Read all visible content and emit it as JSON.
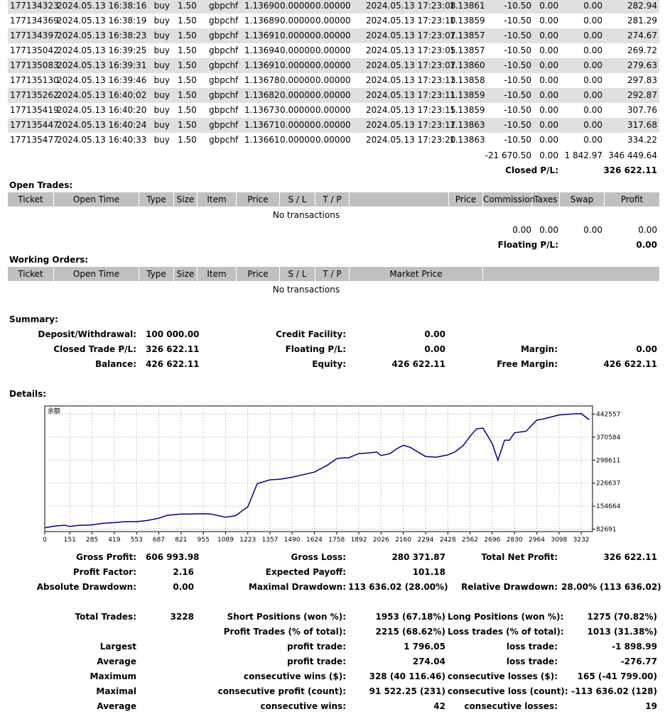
{
  "closed_rows": [
    {
      "ticket": "177134323",
      "open_time": "2024.05.13 16:38:16",
      "type": "buy",
      "size": "1.50",
      "item": "gbpchf",
      "price": "1.13690",
      "sl": "0.00000",
      "tp": "0.00000",
      "close_time": "2024.05.13 17:23:08",
      "close_price": "1.13861",
      "commission": "-10.50",
      "taxes": "0.00",
      "swap": "0.00",
      "profit": "282.94"
    },
    {
      "ticket": "177134369",
      "open_time": "2024.05.13 16:38:19",
      "type": "buy",
      "size": "1.50",
      "item": "gbpchf",
      "price": "1.13689",
      "sl": "0.00000",
      "tp": "0.00000",
      "close_time": "2024.05.13 17:23:10",
      "close_price": "1.13859",
      "commission": "-10.50",
      "taxes": "0.00",
      "swap": "0.00",
      "profit": "281.29"
    },
    {
      "ticket": "177134397",
      "open_time": "2024.05.13 16:38:23",
      "type": "buy",
      "size": "1.50",
      "item": "gbpchf",
      "price": "1.13691",
      "sl": "0.00000",
      "tp": "0.00000",
      "close_time": "2024.05.13 17:23:07",
      "close_price": "1.13857",
      "commission": "-10.50",
      "taxes": "0.00",
      "swap": "0.00",
      "profit": "274.67"
    },
    {
      "ticket": "177135042",
      "open_time": "2024.05.13 16:39:25",
      "type": "buy",
      "size": "1.50",
      "item": "gbpchf",
      "price": "1.13694",
      "sl": "0.00000",
      "tp": "0.00000",
      "close_time": "2024.05.13 17:23:05",
      "close_price": "1.13857",
      "commission": "-10.50",
      "taxes": "0.00",
      "swap": "0.00",
      "profit": "269.72"
    },
    {
      "ticket": "177135083",
      "open_time": "2024.05.13 16:39:31",
      "type": "buy",
      "size": "1.50",
      "item": "gbpchf",
      "price": "1.13691",
      "sl": "0.00000",
      "tp": "0.00000",
      "close_time": "2024.05.13 17:23:07",
      "close_price": "1.13860",
      "commission": "-10.50",
      "taxes": "0.00",
      "swap": "0.00",
      "profit": "279.63"
    },
    {
      "ticket": "177135130",
      "open_time": "2024.05.13 16:39:46",
      "type": "buy",
      "size": "1.50",
      "item": "gbpchf",
      "price": "1.13678",
      "sl": "0.00000",
      "tp": "0.00000",
      "close_time": "2024.05.13 17:23:13",
      "close_price": "1.13858",
      "commission": "-10.50",
      "taxes": "0.00",
      "swap": "0.00",
      "profit": "297.83"
    },
    {
      "ticket": "177135262",
      "open_time": "2024.05.13 16:40:02",
      "type": "buy",
      "size": "1.50",
      "item": "gbpchf",
      "price": "1.13682",
      "sl": "0.00000",
      "tp": "0.00000",
      "close_time": "2024.05.13 17:23:11",
      "close_price": "1.13859",
      "commission": "-10.50",
      "taxes": "0.00",
      "swap": "0.00",
      "profit": "292.87"
    },
    {
      "ticket": "177135419",
      "open_time": "2024.05.13 16:40:20",
      "type": "buy",
      "size": "1.50",
      "item": "gbpchf",
      "price": "1.13673",
      "sl": "0.00000",
      "tp": "0.00000",
      "close_time": "2024.05.13 17:23:15",
      "close_price": "1.13859",
      "commission": "-10.50",
      "taxes": "0.00",
      "swap": "0.00",
      "profit": "307.76"
    },
    {
      "ticket": "177135447",
      "open_time": "2024.05.13 16:40:24",
      "type": "buy",
      "size": "1.50",
      "item": "gbpchf",
      "price": "1.13671",
      "sl": "0.00000",
      "tp": "0.00000",
      "close_time": "2024.05.13 17:23:17",
      "close_price": "1.13863",
      "commission": "-10.50",
      "taxes": "0.00",
      "swap": "0.00",
      "profit": "317.68"
    },
    {
      "ticket": "177135477",
      "open_time": "2024.05.13 16:40:33",
      "type": "buy",
      "size": "1.50",
      "item": "gbpchf",
      "price": "1.13661",
      "sl": "0.00000",
      "tp": "0.00000",
      "close_time": "2024.05.13 17:23:20",
      "close_price": "1.13863",
      "commission": "-10.50",
      "taxes": "0.00",
      "swap": "0.00",
      "profit": "334.22"
    }
  ],
  "closed_totals": {
    "commission": "-21 670.50",
    "taxes": "0.00",
    "swap": "1 842.97",
    "profit": "346 449.64"
  },
  "closed_pl": {
    "label": "Closed P/L:",
    "value": "326 622.11"
  },
  "open_trades": {
    "title": "Open Trades:",
    "headers": [
      "Ticket",
      "Open Time",
      "Type",
      "Size",
      "Item",
      "Price",
      "S / L",
      "T / P",
      "",
      "Price",
      "Commission",
      "Taxes",
      "Swap",
      "Profit"
    ],
    "empty": "No transactions",
    "totals": {
      "commission": "0.00",
      "taxes": "0.00",
      "swap": "0.00",
      "profit": "0.00"
    },
    "floating_label": "Floating P/L:",
    "floating_value": "0.00"
  },
  "working_orders": {
    "title": "Working Orders:",
    "headers": [
      "Ticket",
      "Open Time",
      "Type",
      "Size",
      "Item",
      "Price",
      "S / L",
      "T / P",
      "Market Price",
      ""
    ],
    "empty": "No transactions"
  },
  "summary": {
    "title": "Summary:",
    "deposit_label": "Deposit/Withdrawal:",
    "deposit": "100 000.00",
    "credit_label": "Credit Facility:",
    "credit": "0.00",
    "closed_label": "Closed Trade P/L:",
    "closed": "326 622.11",
    "floating_label": "Floating P/L:",
    "floating": "0.00",
    "margin_label": "Margin:",
    "margin": "0.00",
    "balance_label": "Balance:",
    "balance": "426 622.11",
    "equity_label": "Equity:",
    "equity": "426 622.11",
    "free_margin_label": "Free Margin:",
    "free_margin": "426 622.11"
  },
  "details": {
    "title": "Details:"
  },
  "chart_data": {
    "type": "line",
    "title": "余额",
    "xticks": [
      0,
      151,
      285,
      419,
      553,
      687,
      821,
      955,
      1089,
      1223,
      1357,
      1490,
      1624,
      1758,
      1892,
      2026,
      2160,
      2294,
      2428,
      2562,
      2696,
      2830,
      2964,
      3098,
      3232
    ],
    "yticks": [
      82691,
      154664,
      226637,
      298611,
      370584,
      442557
    ],
    "xlim": [
      0,
      3300
    ],
    "ylim": [
      75000,
      468000
    ],
    "series": [
      {
        "color": "#000080",
        "x": [
          0,
          60,
          120,
          151,
          200,
          285,
          350,
          419,
          480,
          553,
          620,
          687,
          740,
          821,
          880,
          955,
          1000,
          1089,
          1150,
          1190,
          1223,
          1280,
          1357,
          1420,
          1490,
          1540,
          1624,
          1700,
          1758,
          1800,
          1830,
          1892,
          1950,
          2000,
          2026,
          2080,
          2120,
          2160,
          2200,
          2294,
          2360,
          2428,
          2470,
          2520,
          2562,
          2600,
          2640,
          2696,
          2730,
          2770,
          2800,
          2830,
          2900,
          2964,
          3000,
          3098,
          3150,
          3180,
          3232,
          3280
        ],
        "y": [
          87000,
          92000,
          95000,
          91000,
          94000,
          96000,
          101000,
          103000,
          106000,
          106000,
          110000,
          117000,
          126000,
          130000,
          130000,
          131000,
          130000,
          120000,
          125000,
          140000,
          152000,
          225000,
          237000,
          239000,
          245000,
          251000,
          261000,
          282000,
          303000,
          306000,
          306000,
          319000,
          321000,
          324000,
          313000,
          319000,
          334000,
          345000,
          339000,
          310000,
          308000,
          315000,
          324000,
          344000,
          373000,
          396000,
          399000,
          350000,
          298000,
          361000,
          361000,
          384000,
          389000,
          424000,
          427000,
          440000,
          442000,
          443000,
          444000,
          425000
        ]
      }
    ]
  },
  "stats": {
    "gross_profit_label": "Gross Profit:",
    "gross_profit": "606 993.98",
    "gross_loss_label": "Gross Loss:",
    "gross_loss": "280 371.87",
    "total_net_profit_label": "Total Net Profit:",
    "total_net_profit": "326 622.11",
    "profit_factor_label": "Profit Factor:",
    "profit_factor": "2.16",
    "expected_payoff_label": "Expected Payoff:",
    "expected_payoff": "101.18",
    "absolute_drawdown_label": "Absolute Drawdown:",
    "absolute_drawdown": "0.00",
    "maximal_drawdown_label": "Maximal Drawdown:",
    "maximal_drawdown": "113 636.02 (28.00%)",
    "relative_drawdown_label": "Relative Drawdown:",
    "relative_drawdown": "28.00% (113 636.02)",
    "total_trades_label": "Total Trades:",
    "total_trades": "3228",
    "short_label": "Short Positions (won %):",
    "short": "1953 (67.18%)",
    "long_label": "Long Positions (won %):",
    "long": "1275 (70.82%)",
    "profit_trades_label": "Profit Trades (% of total):",
    "profit_trades": "2215 (68.62%)",
    "loss_trades_label": "Loss trades (% of total):",
    "loss_trades": "1013 (31.38%)",
    "largest_label": "Largest",
    "largest_profit_label": "profit trade:",
    "largest_profit": "1 796.05",
    "largest_loss_label": "loss trade:",
    "largest_loss": "-1 898.99",
    "average_label": "Average",
    "average_profit_label": "profit trade:",
    "average_profit": "274.04",
    "average_loss_label": "loss trade:",
    "average_loss": "-276.77",
    "maximum_label": "Maximum",
    "max_wins_label": "consecutive wins ($):",
    "max_wins": "328 (40 116.46)",
    "max_losses_label": "consecutive losses ($):",
    "max_losses": "165 (-41 799.00)",
    "maximal_label": "Maximal",
    "max_profit_label": "consecutive profit (count):",
    "max_profit": "91 522.25 (231)",
    "max_loss_label": "consecutive loss (count):",
    "max_loss": "-113 636.02 (128)",
    "avg_cons_label": "Average",
    "avg_wins_label": "consecutive wins:",
    "avg_wins": "42",
    "avg_losses_label": "consecutive losses:",
    "avg_losses": "19"
  }
}
